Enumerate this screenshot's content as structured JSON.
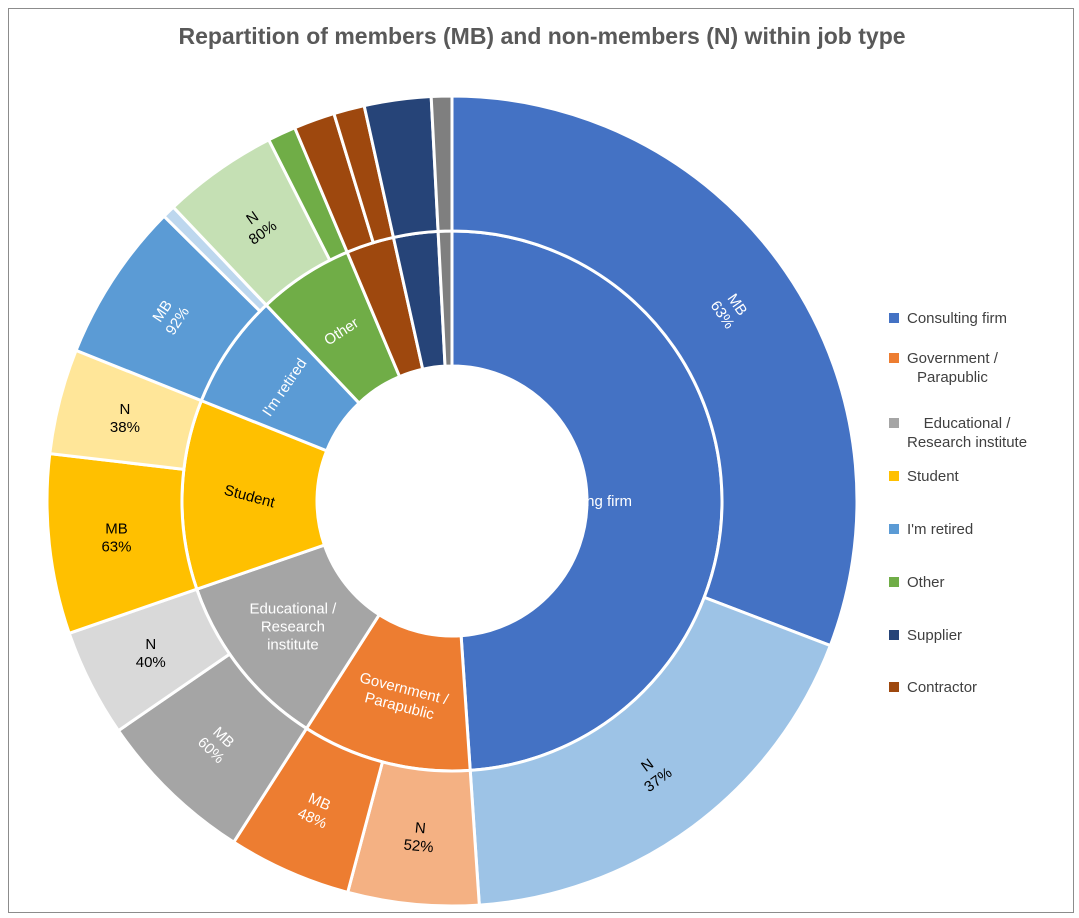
{
  "chart_data": {
    "type": "sunburst",
    "title": "Repartition of members (MB) and non-members (N) within job type",
    "legend_position": "right",
    "inner": [
      {
        "name": "Consulting firm",
        "value": 47.8,
        "color": "#4472C4",
        "label": "Consulting firm",
        "text_color": "#ffffff"
      },
      {
        "name": "Government / Parapublic",
        "value": 9.9,
        "color": "#ED7D31",
        "label": "Government / Parapublic",
        "text_color": "#ffffff"
      },
      {
        "name": "Educational / Research institute",
        "value": 10.4,
        "color": "#A5A5A5",
        "label": "Educational / Research institute",
        "text_color": "#ffffff"
      },
      {
        "name": "Student",
        "value": 11.1,
        "color": "#FFC000",
        "label": "Student",
        "text_color": "#000000"
      },
      {
        "name": "I'm retired",
        "value": 6.7,
        "color": "#5B9BD5",
        "label": "I'm retired",
        "text_color": "#ffffff"
      },
      {
        "name": "Other",
        "value": 5.6,
        "color": "#70AD47",
        "label": "Other",
        "text_color": "#ffffff"
      },
      {
        "name": "Contractor",
        "value": 2.8,
        "color": "#9E480E",
        "label": "",
        "text_color": "#ffffff"
      },
      {
        "name": "Supplier",
        "value": 2.6,
        "color": "#264478",
        "label": "",
        "text_color": "#ffffff"
      },
      {
        "name": "Educational / Research institute (small)",
        "value": 0.8,
        "color": "#7F7F7F",
        "label": "",
        "text_color": "#ffffff"
      }
    ],
    "outer": [
      {
        "parent": "Consulting firm",
        "name": "MB",
        "value": 30.1,
        "percent": "63%",
        "color": "#4472C4",
        "text_color": "#ffffff"
      },
      {
        "parent": "Consulting firm",
        "name": "N",
        "value": 17.7,
        "percent": "37%",
        "color": "#9DC3E6",
        "text_color": "#000000"
      },
      {
        "parent": "Government / Parapublic",
        "name": "N",
        "value": 5.1,
        "percent": "52%",
        "color": "#F4B183",
        "text_color": "#000000"
      },
      {
        "parent": "Government / Parapublic",
        "name": "MB",
        "value": 4.8,
        "percent": "48%",
        "color": "#ED7D31",
        "text_color": "#ffffff"
      },
      {
        "parent": "Educational / Research institute",
        "name": "MB",
        "value": 6.2,
        "percent": "60%",
        "color": "#A5A5A5",
        "text_color": "#ffffff"
      },
      {
        "parent": "Educational / Research institute",
        "name": "N",
        "value": 4.2,
        "percent": "40%",
        "color": "#D9D9D9",
        "text_color": "#000000"
      },
      {
        "parent": "Student",
        "name": "MB",
        "value": 7.0,
        "percent": "63%",
        "color": "#FFC000",
        "text_color": "#000000"
      },
      {
        "parent": "Student",
        "name": "N",
        "value": 4.1,
        "percent": "38%",
        "color": "#FFE699",
        "text_color": "#000000"
      },
      {
        "parent": "I'm retired",
        "name": "MB",
        "value": 6.2,
        "percent": "92%",
        "color": "#5B9BD5",
        "text_color": "#ffffff"
      },
      {
        "parent": "I'm retired",
        "name": "N",
        "value": 0.5,
        "percent": "",
        "color": "#BDD7EE",
        "text_color": "#000000"
      },
      {
        "parent": "Other",
        "name": "N",
        "value": 4.5,
        "percent": "80%",
        "color": "#C5E0B4",
        "text_color": "#000000"
      },
      {
        "parent": "Other",
        "name": "MB",
        "value": 1.1,
        "percent": "",
        "color": "#70AD47",
        "text_color": "#ffffff"
      },
      {
        "parent": "Contractor",
        "name": "MB",
        "value": 1.6,
        "percent": "",
        "color": "#9E480E",
        "text_color": "#ffffff"
      },
      {
        "parent": "Contractor",
        "name": "N",
        "value": 1.2,
        "percent": "",
        "color": "#9E480E",
        "text_color": "#ffffff"
      },
      {
        "parent": "Supplier",
        "name": "MB",
        "value": 2.6,
        "percent": "",
        "color": "#264478",
        "text_color": "#ffffff"
      },
      {
        "parent": "Educational / Research institute (small)",
        "name": "MB",
        "value": 0.8,
        "percent": "",
        "color": "#7F7F7F",
        "text_color": "#ffffff"
      }
    ],
    "legend": [
      {
        "label": "Consulting firm",
        "color": "#4472C4"
      },
      {
        "label": "Government / Parapublic",
        "color": "#ED7D31"
      },
      {
        "label": "Educational / Research institute",
        "color": "#A5A5A5"
      },
      {
        "label": "Student",
        "color": "#FFC000"
      },
      {
        "label": "I'm retired",
        "color": "#5B9BD5"
      },
      {
        "label": "Other",
        "color": "#70AD47"
      },
      {
        "label": "Supplier",
        "color": "#264478"
      },
      {
        "label": "Contractor",
        "color": "#9E480E"
      }
    ]
  }
}
